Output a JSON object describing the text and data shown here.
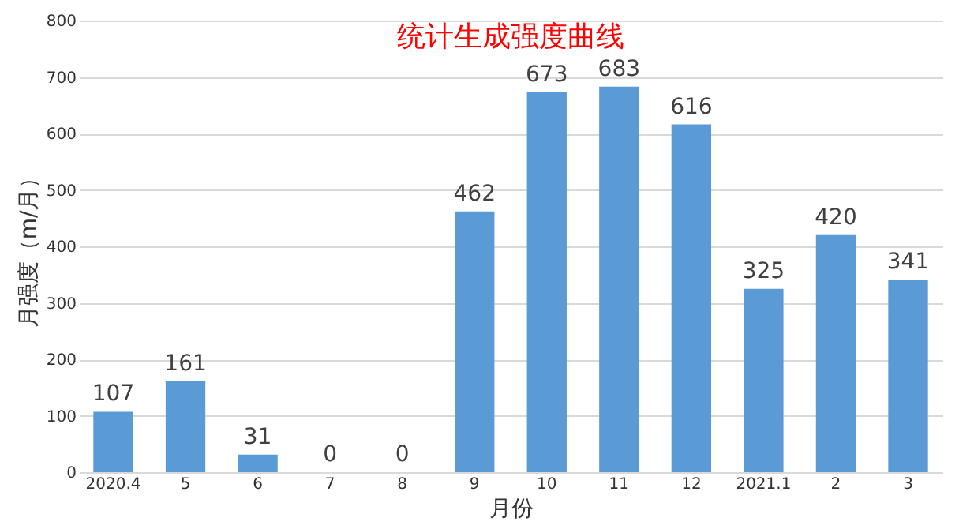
{
  "chart_data": {
    "type": "bar",
    "title": "统计生成强度曲线",
    "xlabel": "月份",
    "ylabel": "月强度（m/月）",
    "categories": [
      "2020.4",
      "5",
      "6",
      "7",
      "8",
      "9",
      "10",
      "11",
      "12",
      "2021.1",
      "2",
      "3"
    ],
    "values": [
      107,
      161,
      31,
      0,
      0,
      462,
      673,
      683,
      616,
      325,
      420,
      341
    ],
    "color": "#5b9bd5",
    "ylim": [
      0,
      800
    ],
    "yticks": [
      0,
      100,
      200,
      300,
      400,
      500,
      600,
      700,
      800
    ],
    "grid": "y",
    "data_labels": true
  }
}
